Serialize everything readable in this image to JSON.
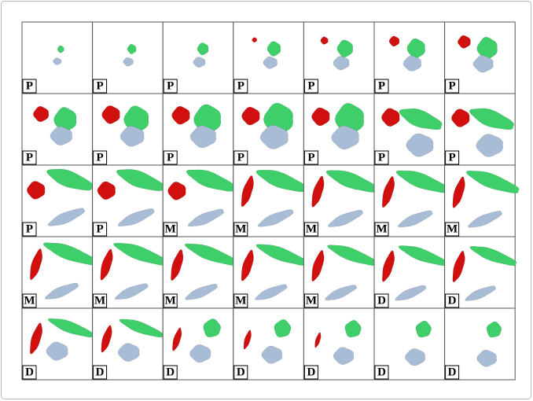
{
  "rows": [
    [
      "P",
      "P",
      "P",
      "P",
      "P",
      "P",
      "P"
    ],
    [
      "P",
      "P",
      "P",
      "P",
      "P",
      "P",
      "P"
    ],
    [
      "P",
      "P",
      "M",
      "M",
      "M",
      "M",
      "M"
    ],
    [
      "M",
      "M",
      "M",
      "M",
      "M",
      "D",
      "D"
    ],
    [
      "D",
      "D",
      "D",
      "D",
      "D",
      "D",
      "D"
    ]
  ]
}
